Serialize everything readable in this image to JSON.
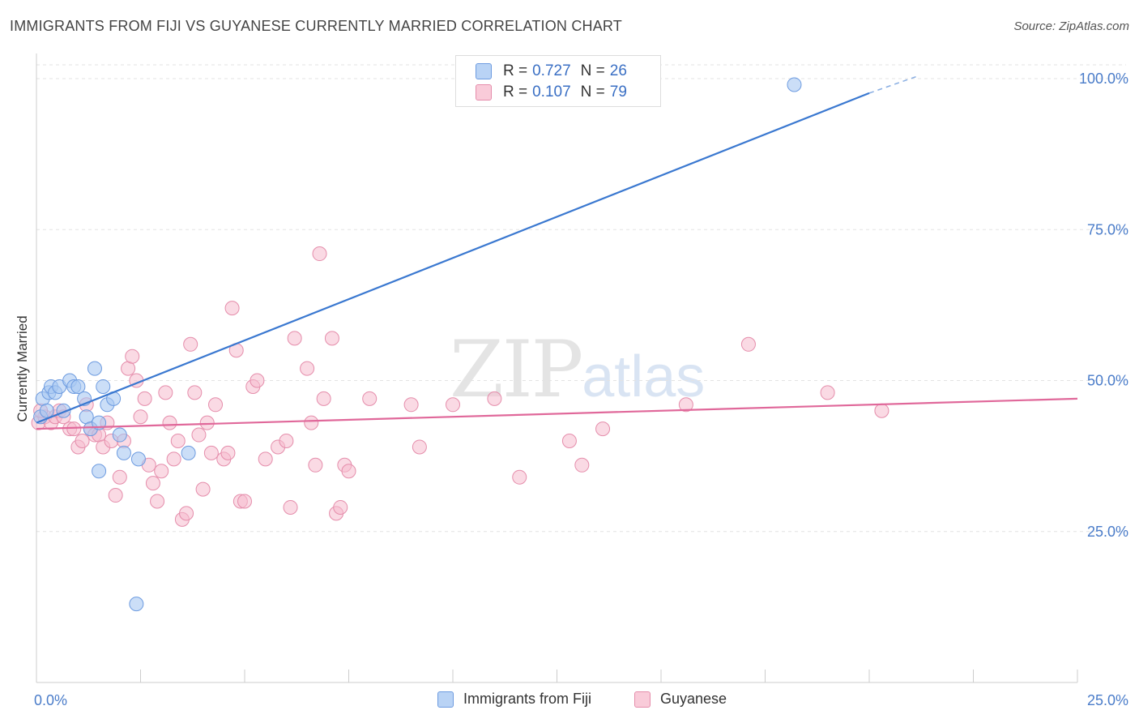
{
  "header": {
    "title": "IMMIGRANTS FROM FIJI VS GUYANESE CURRENTLY MARRIED CORRELATION CHART",
    "source": "Source: ZipAtlas.com"
  },
  "watermark": {
    "zip": "ZIP",
    "atlas": "atlas"
  },
  "legend": {
    "series": [
      {
        "r_label": "R =",
        "r_value": "0.727",
        "n_label": "N =",
        "n_value": "26"
      },
      {
        "r_label": "R =",
        "r_value": "0.107",
        "n_label": "N =",
        "n_value": "79"
      }
    ]
  },
  "colors": {
    "fiji_fill": "#a8c8f2",
    "fiji_stroke": "#6d9be0",
    "fiji_line": "#3a78d0",
    "guyanese_fill": "#f6bccd",
    "guyanese_stroke": "#e58dab",
    "guyanese_line": "#e0689a",
    "axis_text": "#4a7cc9",
    "grid": "#e3e3e3"
  },
  "chart_data": {
    "type": "scatter",
    "title": "IMMIGRANTS FROM FIJI VS GUYANESE CURRENTLY MARRIED CORRELATION CHART",
    "xlabel": "",
    "ylabel": "Currently Married",
    "xlim": [
      0,
      25
    ],
    "ylim": [
      0,
      100
    ],
    "x_ticks": [
      "0.0%",
      "25.0%"
    ],
    "y_ticks": [
      "25.0%",
      "50.0%",
      "75.0%",
      "100.0%"
    ],
    "y_tick_values": [
      25,
      50,
      75,
      100
    ],
    "grid": true,
    "legend_position": "top-center",
    "series": [
      {
        "name": "Immigrants from Fiji",
        "R": 0.727,
        "N": 26,
        "trend": {
          "x": [
            0,
            20.0
          ],
          "y": [
            43.0,
            97.6
          ],
          "dashed_to": [
            21.2,
            100.5
          ]
        },
        "points": [
          [
            0.15,
            47
          ],
          [
            0.3,
            48
          ],
          [
            0.35,
            49
          ],
          [
            0.45,
            48
          ],
          [
            0.55,
            49
          ],
          [
            0.65,
            45
          ],
          [
            0.8,
            50
          ],
          [
            0.9,
            49
          ],
          [
            1.0,
            49
          ],
          [
            1.15,
            47
          ],
          [
            1.2,
            44
          ],
          [
            1.3,
            42
          ],
          [
            1.4,
            52
          ],
          [
            1.5,
            43
          ],
          [
            1.6,
            49
          ],
          [
            1.7,
            46
          ],
          [
            1.85,
            47
          ],
          [
            2.0,
            41
          ],
          [
            2.1,
            38
          ],
          [
            2.45,
            37
          ],
          [
            1.5,
            35
          ],
          [
            3.65,
            38
          ],
          [
            2.4,
            13
          ],
          [
            18.2,
            99
          ],
          [
            0.1,
            44
          ],
          [
            0.25,
            45
          ]
        ]
      },
      {
        "name": "Guyanese",
        "R": 0.107,
        "N": 79,
        "trend": {
          "x": [
            0,
            25
          ],
          "y": [
            42.0,
            47.0
          ]
        },
        "points": [
          [
            0.05,
            43
          ],
          [
            0.2,
            44
          ],
          [
            0.35,
            43
          ],
          [
            0.45,
            44
          ],
          [
            0.55,
            45
          ],
          [
            0.65,
            44
          ],
          [
            0.8,
            42
          ],
          [
            0.9,
            42
          ],
          [
            1.0,
            39
          ],
          [
            1.1,
            40
          ],
          [
            1.2,
            46
          ],
          [
            1.3,
            42
          ],
          [
            1.4,
            41
          ],
          [
            1.5,
            41
          ],
          [
            1.6,
            39
          ],
          [
            1.7,
            43
          ],
          [
            1.8,
            40
          ],
          [
            1.9,
            31
          ],
          [
            2.0,
            34
          ],
          [
            2.1,
            40
          ],
          [
            2.2,
            52
          ],
          [
            2.3,
            54
          ],
          [
            2.4,
            50
          ],
          [
            2.5,
            44
          ],
          [
            2.6,
            47
          ],
          [
            2.7,
            36
          ],
          [
            2.8,
            33
          ],
          [
            2.9,
            30
          ],
          [
            3.0,
            35
          ],
          [
            3.1,
            48
          ],
          [
            3.2,
            43
          ],
          [
            3.3,
            37
          ],
          [
            3.4,
            40
          ],
          [
            3.5,
            27
          ],
          [
            3.6,
            28
          ],
          [
            3.7,
            56
          ],
          [
            3.8,
            48
          ],
          [
            3.9,
            41
          ],
          [
            4.0,
            32
          ],
          [
            4.1,
            43
          ],
          [
            4.2,
            38
          ],
          [
            4.3,
            46
          ],
          [
            4.5,
            37
          ],
          [
            4.6,
            38
          ],
          [
            4.7,
            62
          ],
          [
            4.8,
            55
          ],
          [
            4.9,
            30
          ],
          [
            5.0,
            30
          ],
          [
            5.2,
            49
          ],
          [
            5.3,
            50
          ],
          [
            5.5,
            37
          ],
          [
            5.8,
            39
          ],
          [
            6.0,
            40
          ],
          [
            6.1,
            29
          ],
          [
            6.2,
            57
          ],
          [
            6.5,
            52
          ],
          [
            6.6,
            43
          ],
          [
            6.7,
            36
          ],
          [
            6.8,
            71
          ],
          [
            6.9,
            47
          ],
          [
            7.1,
            57
          ],
          [
            7.2,
            28
          ],
          [
            7.3,
            29
          ],
          [
            7.4,
            36
          ],
          [
            7.5,
            35
          ],
          [
            8.0,
            47
          ],
          [
            9.0,
            46
          ],
          [
            9.2,
            39
          ],
          [
            10.0,
            46
          ],
          [
            11.0,
            47
          ],
          [
            11.6,
            34
          ],
          [
            12.8,
            40
          ],
          [
            13.1,
            36
          ],
          [
            13.6,
            42
          ],
          [
            15.6,
            46
          ],
          [
            17.1,
            56
          ],
          [
            19.0,
            48
          ],
          [
            20.3,
            45
          ],
          [
            0.1,
            45
          ]
        ]
      }
    ]
  },
  "bottom_legend": {
    "fiji": "Immigrants from Fiji",
    "guyanese": "Guyanese"
  }
}
